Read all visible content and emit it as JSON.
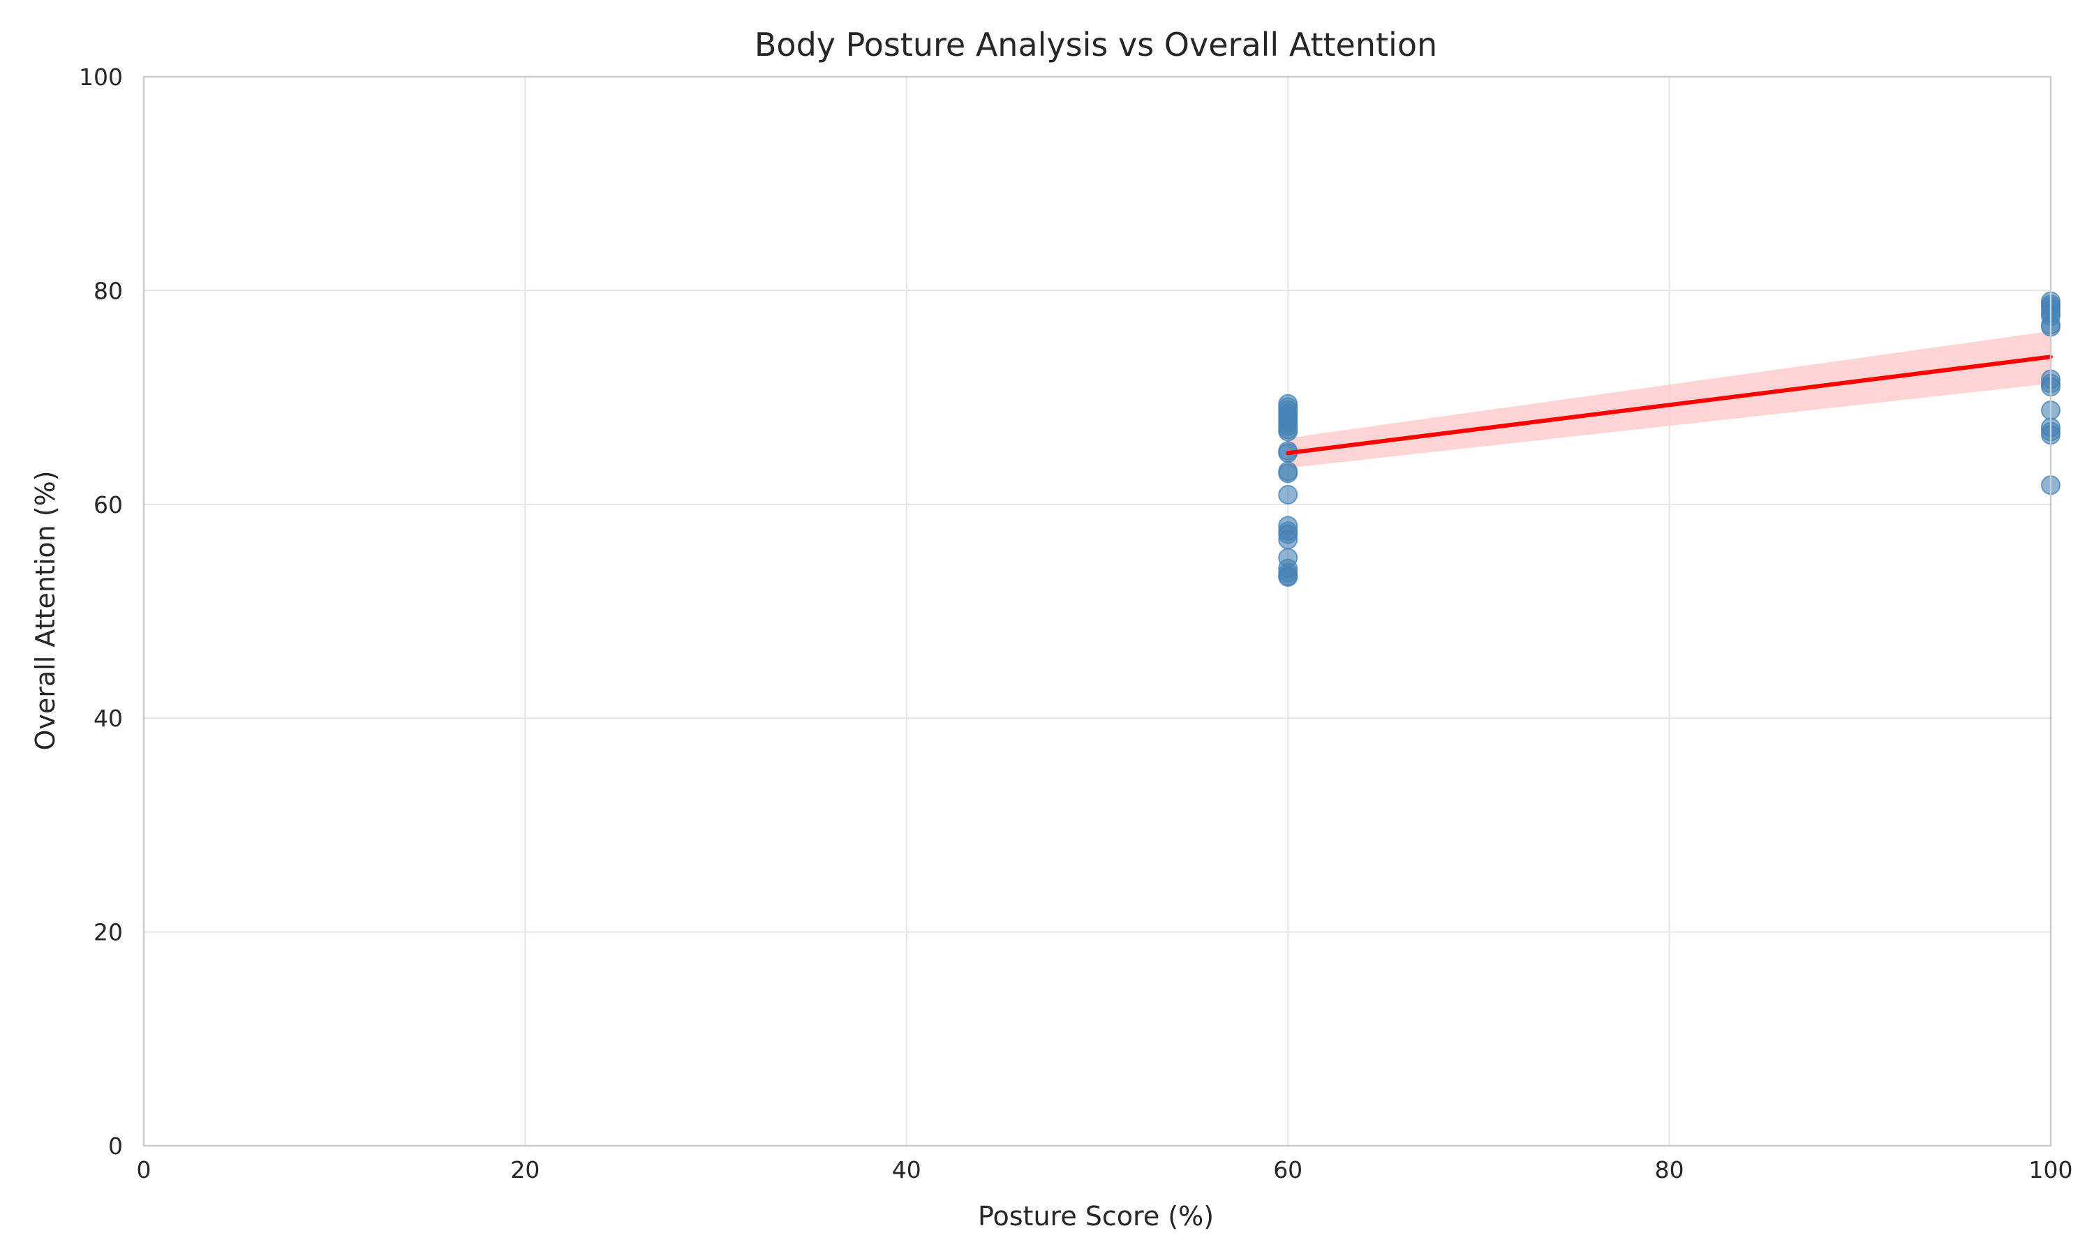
{
  "chart_data": {
    "type": "scatter",
    "title": "Body Posture Analysis vs Overall Attention",
    "xlabel": "Posture Score (%)",
    "ylabel": "Overall Attention (%)",
    "xlim": [
      0,
      100
    ],
    "ylim": [
      0,
      100
    ],
    "xticks": [
      0,
      20,
      40,
      60,
      80,
      100
    ],
    "yticks": [
      0,
      20,
      40,
      60,
      80,
      100
    ],
    "grid": true,
    "legend": "none",
    "colors": {
      "points": "#4682b4",
      "regression_line": "#ff0000",
      "confidence_band": "#ffcccc"
    },
    "series": [
      {
        "kind": "points",
        "x": [
          60,
          60,
          60,
          60,
          60,
          60,
          60,
          60,
          60,
          60,
          60,
          60,
          60,
          60,
          60,
          60,
          60,
          60,
          60,
          60,
          60,
          60,
          60,
          60,
          100,
          100,
          100,
          100,
          100,
          100,
          100,
          100,
          100,
          100,
          100,
          100,
          100,
          100,
          100,
          100
        ],
        "y": [
          69.4,
          69.1,
          68.8,
          68.5,
          68.2,
          67.9,
          67.6,
          67.3,
          67.0,
          66.8,
          65.0,
          64.8,
          63.1,
          62.9,
          60.9,
          58.0,
          57.5,
          57.2,
          56.7,
          55.0,
          54.0,
          53.6,
          53.3,
          53.2,
          79.0,
          78.7,
          78.5,
          78.2,
          77.9,
          77.6,
          76.8,
          76.6,
          71.7,
          71.3,
          71.0,
          68.8,
          67.2,
          66.8,
          66.5,
          61.8
        ]
      },
      {
        "kind": "regression",
        "x": [
          60,
          100
        ],
        "y": [
          64.8,
          73.8
        ],
        "ci_lower": [
          63.4,
          71.3
        ],
        "ci_upper": [
          66.2,
          76.2
        ]
      }
    ]
  }
}
